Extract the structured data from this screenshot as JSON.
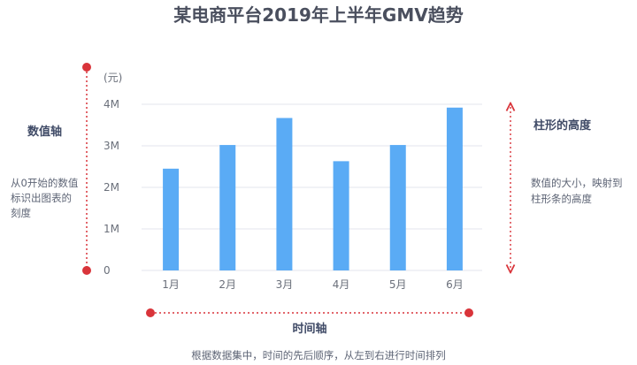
{
  "chart_data": {
    "type": "bar",
    "title": "某电商平台2019年上半年GMV趋势",
    "unit_label": "(元)",
    "categories": [
      "1月",
      "2月",
      "3月",
      "4月",
      "5月",
      "6月"
    ],
    "values": [
      2450000,
      3020000,
      3670000,
      2630000,
      3020000,
      3920000
    ],
    "ylim": [
      0,
      4000000
    ],
    "yticks": [
      {
        "value": 0,
        "label": "0"
      },
      {
        "value": 1000000,
        "label": "1M"
      },
      {
        "value": 2000000,
        "label": "2M"
      },
      {
        "value": 3000000,
        "label": "3M"
      },
      {
        "value": 4000000,
        "label": "4M"
      }
    ],
    "grid": true,
    "bar_color": "#5aabf5"
  },
  "annotations": {
    "y_axis_title": "数值轴",
    "y_axis_desc": [
      "从0开始的数值",
      "标识出图表的",
      "刻度"
    ],
    "height_title": "柱形的高度",
    "height_desc": [
      "数值的大小，映射到",
      "柱形条的高度"
    ],
    "x_axis_title": "时间轴",
    "x_axis_desc": "根据数据集中，时间的先后顺序，从左到右进行时间排列",
    "marker_color": "#d9343a"
  }
}
